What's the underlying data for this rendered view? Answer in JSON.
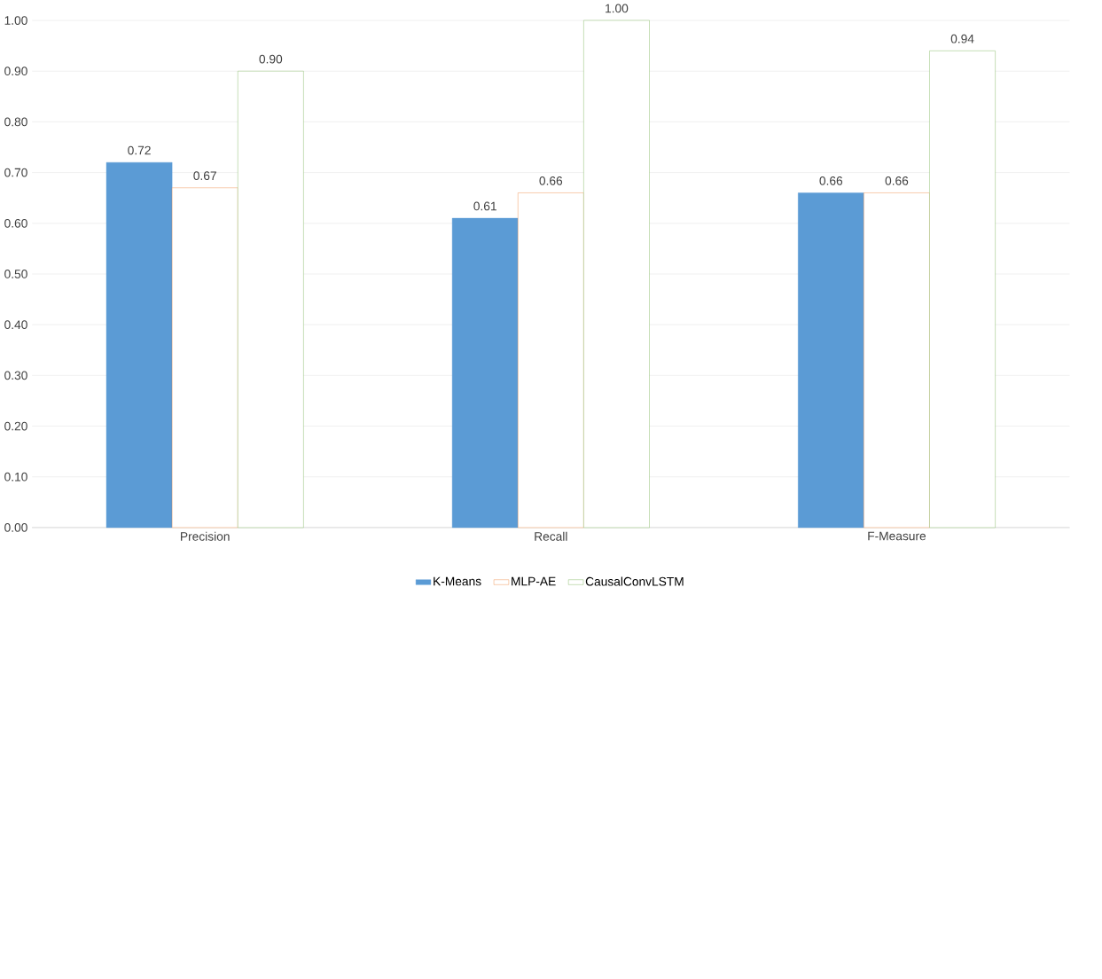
{
  "chart_data": {
    "type": "bar",
    "categories": [
      "Precision",
      "Recall",
      "F-Measure"
    ],
    "series": [
      {
        "name": "K-Means",
        "color": "#5b9bd5",
        "values": [
          0.72,
          0.61,
          0.66
        ],
        "value_labels": [
          "0.72",
          "0.61",
          "0.66"
        ]
      },
      {
        "name": "MLP-AE",
        "color": "#ed7d31",
        "values": [
          0.67,
          0.66,
          0.66
        ],
        "value_labels": [
          "0.67",
          "0.66",
          "0.66"
        ]
      },
      {
        "name": "CausalConvLSTM",
        "color": "#70ad47",
        "values": [
          0.9,
          1.0,
          0.94
        ],
        "value_labels": [
          "0.90",
          "1.00",
          "0.94"
        ]
      }
    ],
    "ylim": [
      0,
      1
    ],
    "yticks": [
      {
        "value": 0,
        "label": "0.00"
      },
      {
        "value": 0.1,
        "label": "0.10"
      },
      {
        "value": 0.2,
        "label": "0.20"
      },
      {
        "value": 0.3,
        "label": "0.30"
      },
      {
        "value": 0.4,
        "label": "0.40"
      },
      {
        "value": 0.5,
        "label": "0.50"
      },
      {
        "value": 0.6,
        "label": "0.60"
      },
      {
        "value": 0.7,
        "label": "0.70"
      },
      {
        "value": 0.8,
        "label": "0.80"
      },
      {
        "value": 0.9,
        "label": "0.90"
      },
      {
        "value": 1,
        "label": "1.00"
      }
    ],
    "grid": "y",
    "legend": "bottom"
  }
}
